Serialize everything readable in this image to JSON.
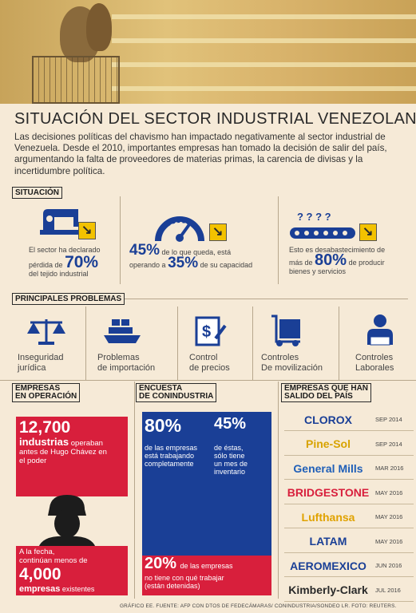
{
  "header": {
    "title": "SITUACIÓN DEL SECTOR INDUSTRIAL VENEZOLANO",
    "intro": "Las decisiones políticas del chavismo han impactado negativamente al sector industrial de Venezuela. Desde el 2010, importantes empresas han tomado la decisión de salir del país, argumentando la falta de proveedores de materias primas, la carencia de divisas y la incertidumbre política."
  },
  "situacion": {
    "tag": "SITUACIÓN",
    "col1": {
      "line1": "El sector ha declarado",
      "pre": "pérdida de",
      "pct": "70%",
      "line3": "del tejido industrial"
    },
    "col2": {
      "pct1": "45%",
      "post1": "de lo que queda, está",
      "pre2": "operando a",
      "pct2": "35%",
      "post2": "de su capacidad"
    },
    "col3": {
      "line1": "Esto es desabastecimiento de",
      "pre": "más de",
      "pct": "80%",
      "post": "de producir",
      "line3": "bienes y servicios",
      "qmarks": "? ? ? ?"
    }
  },
  "problemas": {
    "tag": "PRINCIPALES PROBLEMAS",
    "items": [
      {
        "l1": "Inseguridad",
        "l2": "jurídica"
      },
      {
        "l1": "Problemas",
        "l2": "de importación"
      },
      {
        "l1": "Control",
        "l2": "de precios"
      },
      {
        "l1": "Controles",
        "l2": "De movilización"
      },
      {
        "l1": "Controles",
        "l2": "Laborales"
      }
    ]
  },
  "operacion": {
    "tag1": "EMPRESAS",
    "tag2": "EN OPERACIÓN",
    "num1": "12,700",
    "word1": "industrias",
    "text1a": "operaban",
    "text1b": "antes de Hugo Chávez en",
    "text1c": "el poder",
    "text2a": "A la fecha,",
    "text2b": "continúan menos de",
    "num2": "4,000",
    "word2": "empresas",
    "text2c": "existentes"
  },
  "encuesta": {
    "tag1": "ENCUESTA",
    "tag2": "DE CONINDUSTRIA",
    "pct1": "80%",
    "t1a": "de las empresas",
    "t1b": "está trabajando",
    "t1c": "completamente",
    "pct2": "45%",
    "t2a": "de éstas,",
    "t2b": "sólo tiene",
    "t2c": "un mes de",
    "t2d": "inventario",
    "pct3": "20%",
    "t3a": "de las empresas",
    "t3b": "no tiene con qué trabajar",
    "t3c": "(están detenidas)"
  },
  "salido": {
    "tag1": "EMPRESAS QUE HAN",
    "tag2": "SALIDO DEL PAÍS",
    "brands": [
      {
        "name": "CLOROX",
        "date": "SEP 2014",
        "color": "#1a3f96"
      },
      {
        "name": "Pine-Sol",
        "date": "SEP 2014",
        "color": "#d8a300"
      },
      {
        "name": "General Mills",
        "date": "MAR 2016",
        "color": "#1f5fb8"
      },
      {
        "name": "BRIDGESTONE",
        "date": "MAY 2016",
        "color": "#d81f3c"
      },
      {
        "name": "Lufthansa",
        "date": "MAY 2016",
        "color": "#e0a200"
      },
      {
        "name": "LATAM",
        "date": "MAY 2016",
        "color": "#1a3f96"
      },
      {
        "name": "AEROMEXICO",
        "date": "JUN 2016",
        "color": "#1a3f96"
      },
      {
        "name": "Kimberly-Clark",
        "date": "JUL 2016",
        "color": "#2a2a2a"
      }
    ]
  },
  "footer": "GRÁFICO EE. FUENTE: AFP CON DTOS DE FEDECÁMARAS/ CONINDUSTRIA/SONDEO LR. FOTO: REUTERS."
}
